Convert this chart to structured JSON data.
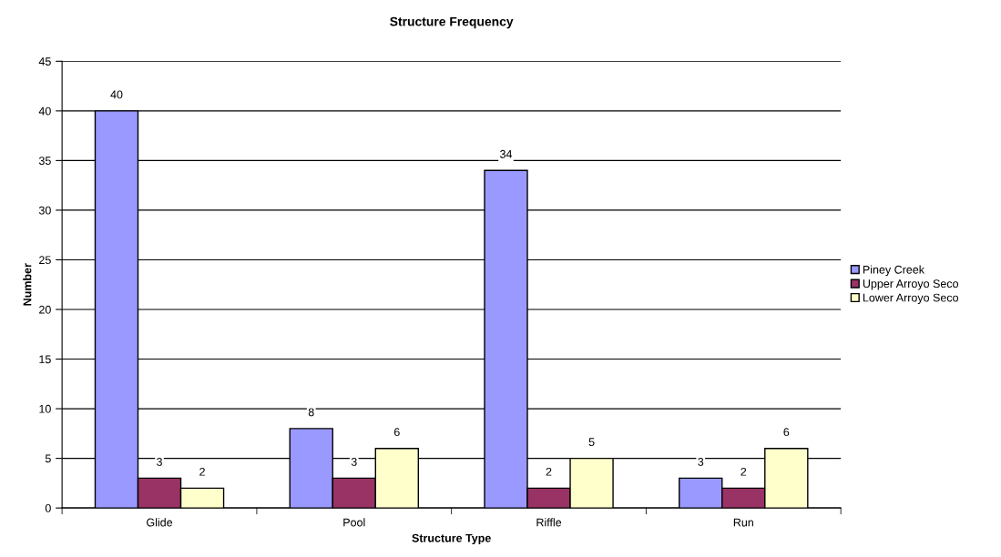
{
  "chart_data": {
    "type": "bar",
    "title": "Structure Frequency",
    "xlabel": "Structure Type",
    "ylabel": "Number",
    "categories": [
      "Glide",
      "Pool",
      "Riffle",
      "Run"
    ],
    "series": [
      {
        "name": "Piney Creek",
        "color": "#9999ff",
        "values": [
          40,
          8,
          34,
          3
        ]
      },
      {
        "name": "Upper Arroyo Seco",
        "color": "#993366",
        "values": [
          3,
          3,
          2,
          2
        ]
      },
      {
        "name": "Lower Arroyo Seco",
        "color": "#ffffcc",
        "values": [
          2,
          6,
          5,
          6
        ]
      }
    ],
    "ylim": [
      0,
      45
    ],
    "yticks": [
      0,
      5,
      10,
      15,
      20,
      25,
      30,
      35,
      40,
      45
    ],
    "grid": "y",
    "legend": "right",
    "data_labels": true
  }
}
